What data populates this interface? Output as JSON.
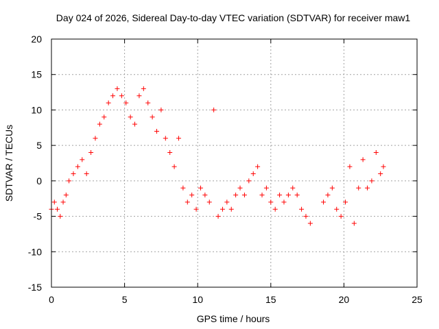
{
  "chart_data": {
    "type": "scatter",
    "title": "Day 024 of 2026, Sidereal Day-to-day VTEC variation (SDTVAR) for receiver maw1",
    "xlabel": "GPS time / hours",
    "ylabel": "SDTVAR / TECUs",
    "xlim": [
      0,
      25
    ],
    "ylim": [
      -15,
      20
    ],
    "x_ticks": [
      "0",
      "5",
      "10",
      "15",
      "20",
      "25"
    ],
    "y_ticks": [
      "-15",
      "-10",
      "-5",
      "0",
      "5",
      "10",
      "15",
      "20"
    ],
    "grid": true,
    "marker": "+",
    "color": "#ff0000",
    "series": [
      {
        "name": "SDTVAR",
        "x": [
          0.0,
          0.2,
          0.4,
          0.6,
          0.8,
          1.0,
          1.2,
          1.5,
          1.8,
          2.1,
          2.4,
          2.7,
          3.0,
          3.3,
          3.6,
          3.9,
          4.2,
          4.5,
          4.8,
          5.1,
          5.4,
          5.7,
          6.0,
          6.3,
          6.6,
          6.9,
          7.2,
          7.5,
          7.8,
          8.1,
          8.4,
          8.7,
          9.0,
          9.3,
          9.6,
          9.9,
          10.2,
          10.5,
          10.8,
          11.1,
          11.4,
          11.7,
          12.0,
          12.3,
          12.6,
          12.9,
          13.2,
          13.5,
          13.8,
          14.1,
          14.4,
          14.7,
          15.0,
          15.3,
          15.6,
          15.9,
          16.2,
          16.5,
          16.8,
          17.1,
          17.4,
          17.7,
          18.6,
          18.9,
          19.2,
          19.5,
          19.8,
          20.1,
          20.4,
          20.7,
          21.0,
          21.3,
          21.6,
          21.9,
          22.2,
          22.5,
          22.7
        ],
        "y": [
          -4,
          -3,
          -4,
          -5,
          -3,
          -2,
          0,
          1,
          2,
          3,
          1,
          4,
          6,
          8,
          9,
          11,
          12,
          13,
          12,
          11,
          9,
          8,
          12,
          13,
          11,
          9,
          7,
          10,
          6,
          4,
          2,
          6,
          -1,
          -3,
          -2,
          -4,
          -1,
          -2,
          -3,
          10,
          -5,
          -4,
          -3,
          -4,
          -2,
          -1,
          -2,
          0,
          1,
          2,
          -2,
          -1,
          -3,
          -4,
          -2,
          -3,
          -2,
          -1,
          -2,
          -4,
          -5,
          -6,
          -3,
          -2,
          -1,
          -4,
          -5,
          -3,
          2,
          -6,
          -1,
          3,
          -1,
          0,
          4,
          1,
          2
        ]
      }
    ]
  }
}
